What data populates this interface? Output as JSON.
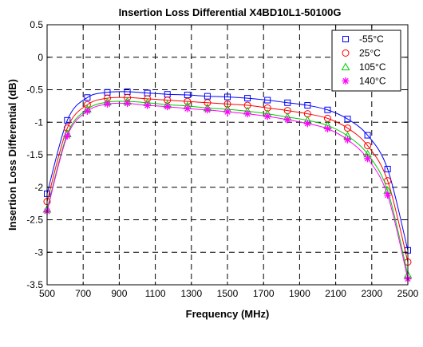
{
  "chart_data": {
    "type": "line",
    "title": "Insertion Loss Differential  X4BD10L1-50100G",
    "xlabel": "Frequency (MHz)",
    "ylabel": "Insertion Loss Differential (dB)",
    "xlim": [
      500,
      2500
    ],
    "ylim": [
      -3.5,
      0.5
    ],
    "xticks": [
      "500",
      "700",
      "900",
      "1100",
      "1300",
      "1500",
      "1700",
      "1900",
      "2100",
      "2300",
      "2500"
    ],
    "yticks": [
      "0.5",
      "0",
      "-0.5",
      "-1",
      "-1.5",
      "-2",
      "-2.5",
      "-3",
      "-3.5"
    ],
    "grid": true,
    "legend_position": "top-right",
    "x": [
      500,
      612,
      723,
      834,
      945,
      1056,
      1167,
      1278,
      1389,
      1500,
      1611,
      1722,
      1833,
      1944,
      2055,
      2166,
      2277,
      2388,
      2500
    ],
    "series": [
      {
        "name": "-55°C",
        "color": "#0000ff",
        "marker": "square",
        "values": [
          -2.1,
          -0.97,
          -0.62,
          -0.54,
          -0.53,
          -0.55,
          -0.57,
          -0.58,
          -0.6,
          -0.61,
          -0.63,
          -0.66,
          -0.7,
          -0.74,
          -0.81,
          -0.95,
          -1.2,
          -1.72,
          -2.97
        ]
      },
      {
        "name": "25°C",
        "color": "#ff0000",
        "marker": "circle",
        "values": [
          -2.22,
          -1.09,
          -0.73,
          -0.63,
          -0.62,
          -0.64,
          -0.66,
          -0.68,
          -0.7,
          -0.72,
          -0.74,
          -0.78,
          -0.82,
          -0.87,
          -0.94,
          -1.09,
          -1.36,
          -1.9,
          -3.15
        ]
      },
      {
        "name": "105°C",
        "color": "#00cc00",
        "marker": "triangle",
        "values": [
          -2.34,
          -1.18,
          -0.8,
          -0.69,
          -0.68,
          -0.7,
          -0.73,
          -0.75,
          -0.78,
          -0.8,
          -0.83,
          -0.87,
          -0.92,
          -0.97,
          -1.05,
          -1.21,
          -1.49,
          -2.05,
          -3.35
        ]
      },
      {
        "name": "140°C",
        "color": "#ff00ff",
        "marker": "asterisk",
        "values": [
          -2.37,
          -1.21,
          -0.83,
          -0.72,
          -0.71,
          -0.74,
          -0.76,
          -0.79,
          -0.81,
          -0.84,
          -0.87,
          -0.91,
          -0.96,
          -1.02,
          -1.1,
          -1.27,
          -1.56,
          -2.12,
          -3.41
        ]
      }
    ]
  }
}
